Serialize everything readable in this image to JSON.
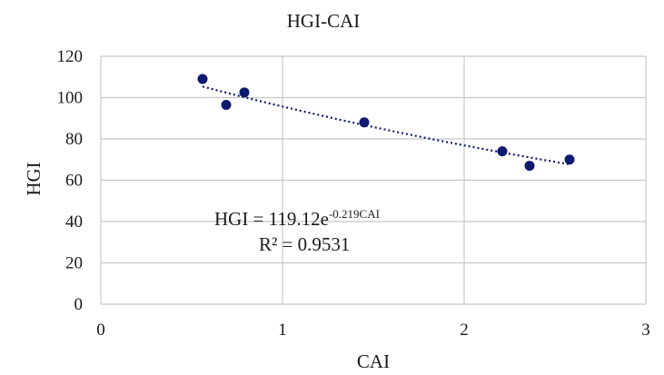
{
  "chart_data": {
    "type": "scatter",
    "title": "HGI-CAI",
    "xlabel": "CAI",
    "ylabel": "HGI",
    "xlim": [
      0,
      3
    ],
    "ylim": [
      0,
      120
    ],
    "x_ticks": [
      0,
      1,
      2,
      3
    ],
    "y_ticks": [
      0,
      20,
      40,
      60,
      80,
      100,
      120
    ],
    "grid": true,
    "marker_color": "#0d1a6e",
    "trendline_color": "#0d1a6e",
    "points": [
      {
        "x": 0.56,
        "y": 109
      },
      {
        "x": 0.69,
        "y": 96.5
      },
      {
        "x": 0.79,
        "y": 102.5
      },
      {
        "x": 1.45,
        "y": 88
      },
      {
        "x": 2.21,
        "y": 74
      },
      {
        "x": 2.36,
        "y": 67
      },
      {
        "x": 2.58,
        "y": 70
      }
    ],
    "trendline": {
      "type": "exponential",
      "a": 119.12,
      "b": -0.219,
      "x_range": [
        0.56,
        2.58
      ],
      "equation_prefix": "HGI = 119.12e",
      "equation_exponent": "-0.219CAI",
      "r_squared_label": "R² = 0.9531"
    }
  }
}
